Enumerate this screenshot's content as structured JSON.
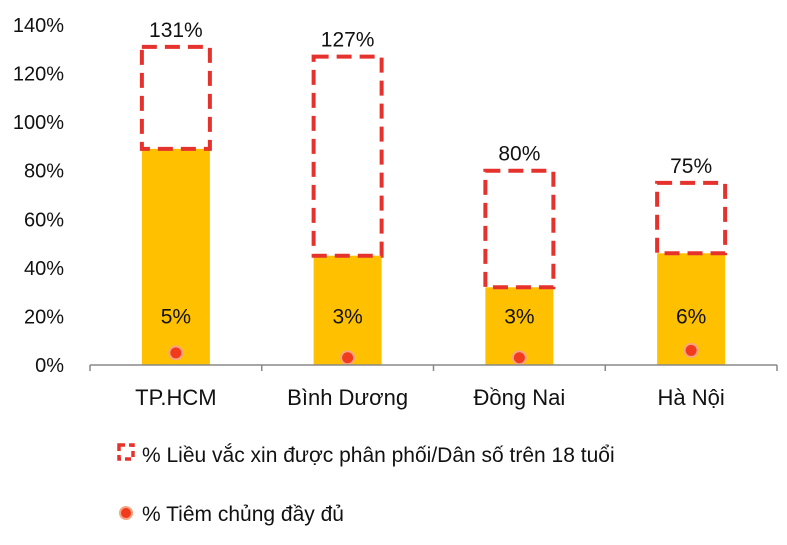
{
  "chart_data": {
    "type": "bar",
    "categories": [
      "TP.HCM",
      "Bình Dương",
      "Đồng Nai",
      "Hà Nội"
    ],
    "series": [
      {
        "name": "% Liều vắc xin được phân phối/Dân số trên 18 tuổi",
        "style": "dashed-outline",
        "values": [
          131,
          127,
          80,
          75
        ],
        "labels": [
          "131%",
          "127%",
          "80%",
          "75%"
        ]
      },
      {
        "name": "% Tiêm chủng đầy đủ",
        "style": "marker",
        "values": [
          5,
          3,
          3,
          6
        ],
        "labels": [
          "5%",
          "3%",
          "3%",
          "6%"
        ]
      }
    ],
    "unnamed_series": [
      {
        "style": "solid-bar",
        "values": [
          89,
          45,
          32,
          46
        ]
      }
    ],
    "yticks": [
      "0%",
      "20%",
      "40%",
      "60%",
      "80%",
      "100%",
      "120%",
      "140%"
    ],
    "ylim": [
      0,
      140
    ],
    "grid": false,
    "legend_position": "bottom",
    "colors": {
      "solid_bar": "#FFC000",
      "dashed_outline": "#E5322D",
      "marker": "#F23A1C",
      "marker_outline": "#F7A483",
      "axis": "#888888"
    }
  }
}
